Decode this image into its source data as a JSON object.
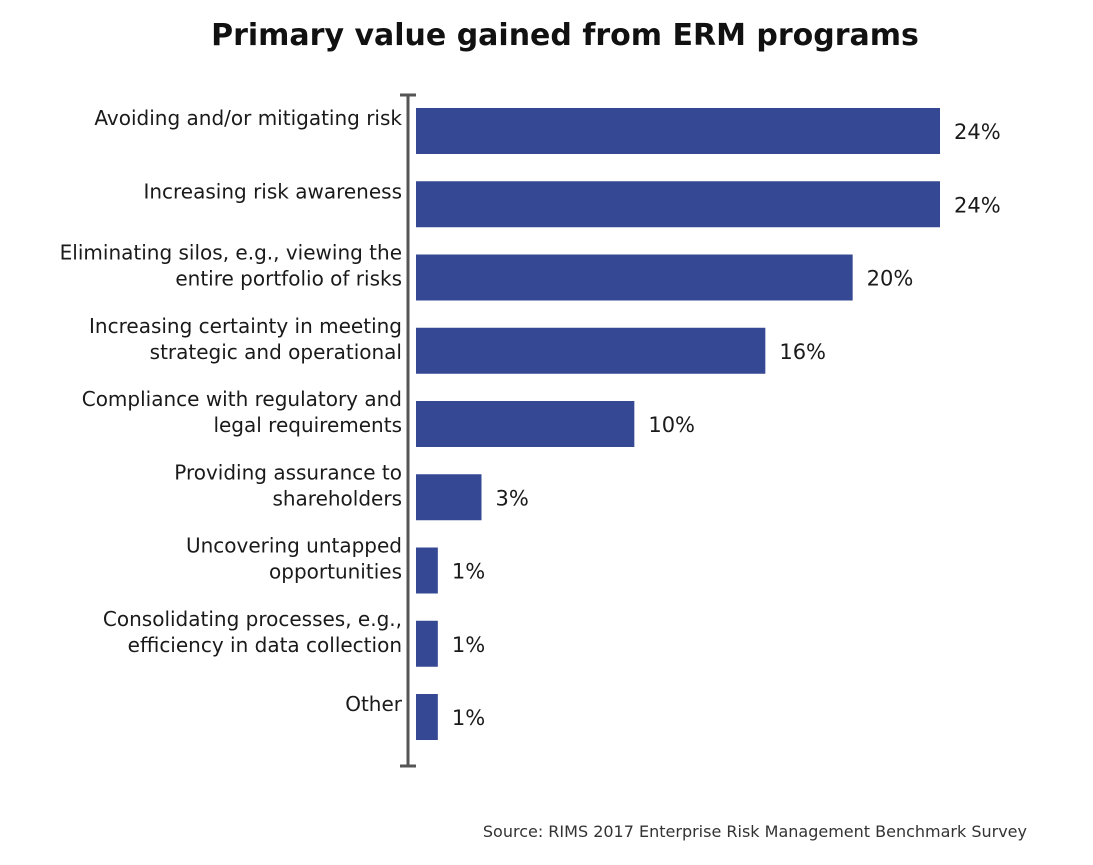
{
  "chart_data": {
    "type": "bar",
    "orientation": "horizontal",
    "title": "Primary value gained from ERM programs",
    "categories": [
      [
        "Avoiding and/or mitigating risk"
      ],
      [
        "Increasing risk awareness"
      ],
      [
        "Eliminating silos, e.g., viewing the",
        "entire portfolio of risks"
      ],
      [
        "Increasing certainty in meeting",
        "strategic and operational"
      ],
      [
        "Compliance with regulatory and",
        "legal requirements"
      ],
      [
        "Providing assurance to",
        "shareholders"
      ],
      [
        "Uncovering untapped",
        "opportunities"
      ],
      [
        "Consolidating processes, e.g.,",
        "efficiency in data collection"
      ],
      [
        "Other"
      ]
    ],
    "values": [
      24,
      24,
      20,
      16,
      10,
      3,
      1,
      1,
      1
    ],
    "value_labels": [
      "24%",
      "24%",
      "20%",
      "16%",
      "10%",
      "3%",
      "1%",
      "1%",
      "1%"
    ],
    "unit": "%",
    "xlim": [
      0,
      24
    ],
    "grid": false,
    "legend": "none",
    "bar_color": "#354893",
    "axis_color": "#555555"
  },
  "source": "Source: RIMS 2017 Enterprise Risk Management Benchmark Survey"
}
